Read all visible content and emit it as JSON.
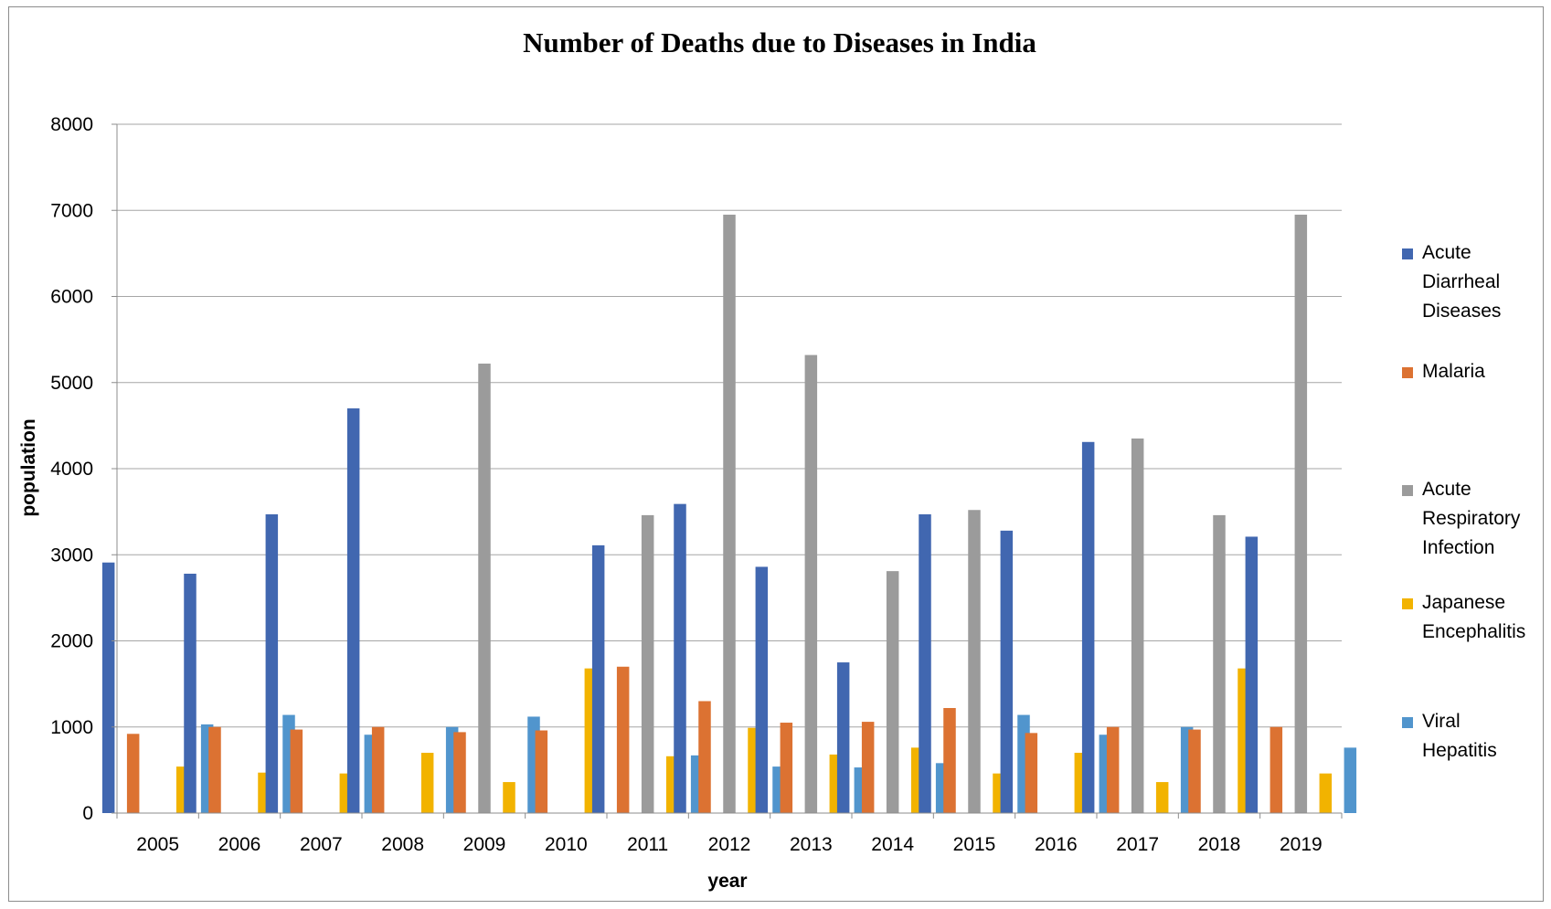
{
  "chart_data": {
    "type": "bar",
    "title": "Number of Deaths due to Diseases in India",
    "xlabel": "year",
    "ylabel": "population",
    "ylim": [
      0,
      8000
    ],
    "yticks": [
      0,
      1000,
      2000,
      3000,
      4000,
      5000,
      6000,
      7000,
      8000
    ],
    "grid": true,
    "legend_position": "right",
    "categories": [
      "2005",
      "2006",
      "2007",
      "2008",
      "2009",
      "2010",
      "2011",
      "2012",
      "2013",
      "2014",
      "2015",
      "2016",
      "2017",
      "2018",
      "2019"
    ],
    "series": [
      {
        "name": "Acute Diarrheal Diseases",
        "legend_lines": [
          "Acute",
          "Diarrheal",
          "Diseases"
        ],
        "color": "#4167b0",
        "values": [
          2910,
          2780,
          3470,
          4700,
          0,
          0,
          3110,
          3590,
          2860,
          1750,
          3470,
          3280,
          4310,
          0,
          3210
        ]
      },
      {
        "name": "Malaria",
        "legend_lines": [
          "Malaria"
        ],
        "color": "#dc7232",
        "values": [
          920,
          1000,
          970,
          1000,
          940,
          960,
          1700,
          1300,
          1050,
          1060,
          1220,
          930,
          1000,
          970,
          1000
        ]
      },
      {
        "name": "Acute Respiratory Infection",
        "legend_lines": [
          "Acute",
          "Respiratory",
          "Infection"
        ],
        "color": "#9b9b9b",
        "values": [
          0,
          0,
          0,
          0,
          5220,
          0,
          3460,
          6950,
          5320,
          2810,
          3520,
          0,
          4350,
          3460,
          6950
        ]
      },
      {
        "name": "Japanese Encephalitis",
        "legend_lines": [
          "Japanese",
          "Encephalitis"
        ],
        "color": "#f2b300",
        "values": [
          540,
          470,
          460,
          700,
          360,
          1680,
          660,
          990,
          680,
          760,
          460,
          700,
          360,
          1680,
          460
        ]
      },
      {
        "name": "Viral Hepatitis",
        "legend_lines": [
          "Viral",
          "Hepatitis"
        ],
        "color": "#5195cd",
        "values": [
          1030,
          1140,
          910,
          1000,
          1120,
          0,
          670,
          540,
          530,
          580,
          1140,
          910,
          1000,
          0,
          760
        ]
      }
    ]
  }
}
